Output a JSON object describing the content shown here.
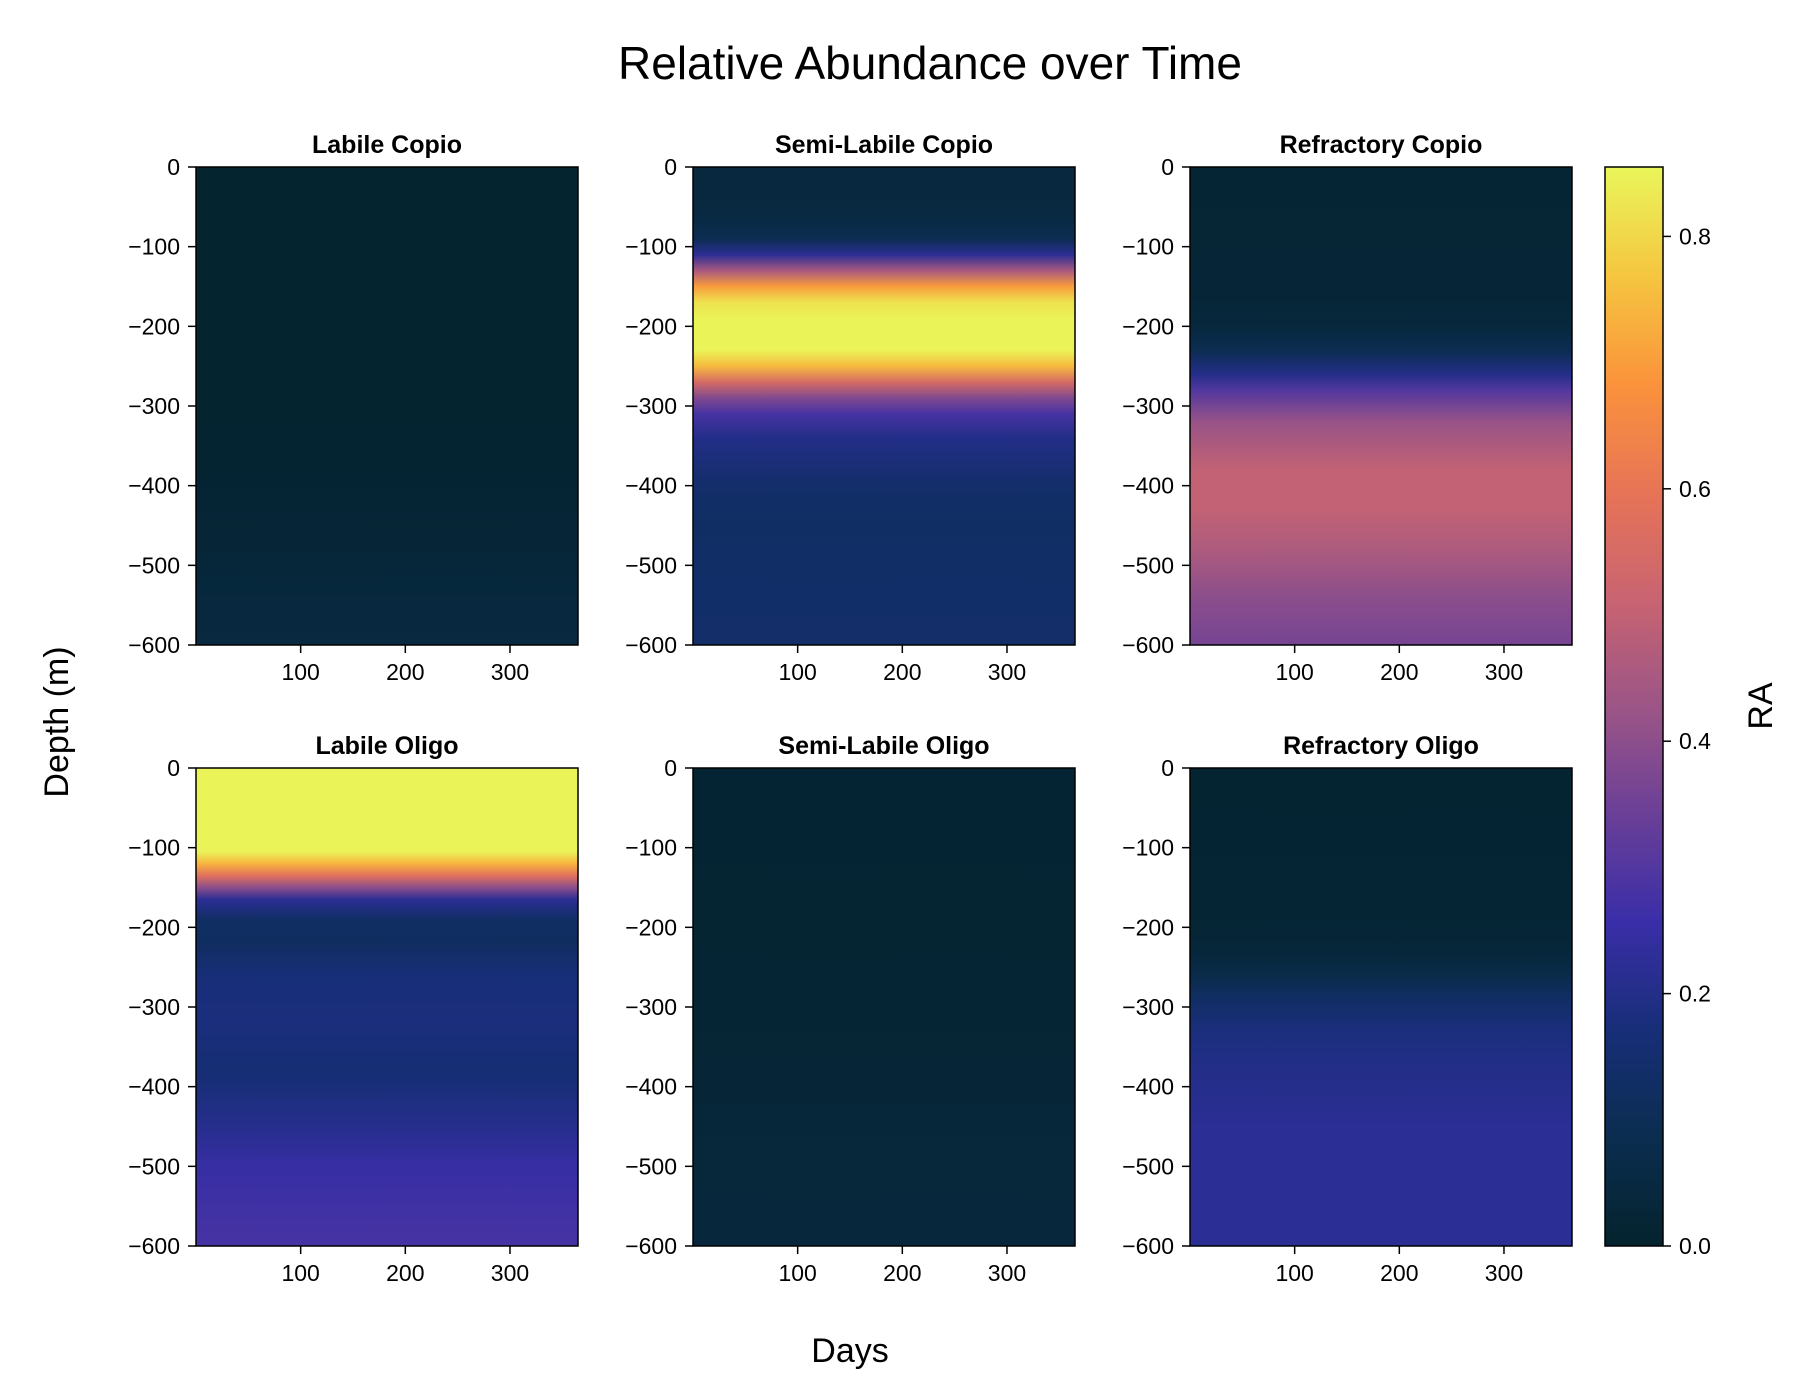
{
  "chart_data": {
    "type": "heatmap",
    "title": "Relative Abundance over Time",
    "xlabel": "Days",
    "ylabel": "Depth (m)",
    "colorbar": {
      "label": "RA",
      "range": [
        0,
        0.855
      ],
      "ticks": [
        0.0,
        0.2,
        0.4,
        0.6,
        0.8
      ],
      "tick_labels": [
        "0.0",
        "0.2",
        "0.4",
        "0.6",
        "0.8"
      ],
      "colormap": "thermal",
      "stops": [
        "#04232e",
        "#0b2d4f",
        "#172e78",
        "#3a2ea8",
        "#6a3f97",
        "#9c5586",
        "#c96471",
        "#e77456",
        "#fa933b",
        "#f5c640",
        "#e9f65a"
      ]
    },
    "xlim": [
      0,
      365
    ],
    "ylim": [
      -600,
      0
    ],
    "xticks": [
      100,
      200,
      300
    ],
    "xtick_labels": [
      "100",
      "200",
      "300"
    ],
    "yticks": [
      0,
      -100,
      -200,
      -300,
      -400,
      -500,
      -600
    ],
    "ytick_labels": [
      "0",
      "−100",
      "−200",
      "−300",
      "−400",
      "−500",
      "−600"
    ],
    "uniform_over_days": true,
    "panels": [
      {
        "title": "Labile Copio",
        "profile": [
          [
            0,
            0.005
          ],
          [
            -100,
            0.005
          ],
          [
            -200,
            0.005
          ],
          [
            -300,
            0.006
          ],
          [
            -400,
            0.012
          ],
          [
            -500,
            0.03
          ],
          [
            -600,
            0.05
          ]
        ]
      },
      {
        "title": "Semi-Labile Copio",
        "profile": [
          [
            0,
            0.04
          ],
          [
            -60,
            0.05
          ],
          [
            -90,
            0.09
          ],
          [
            -110,
            0.22
          ],
          [
            -130,
            0.45
          ],
          [
            -150,
            0.7
          ],
          [
            -170,
            0.82
          ],
          [
            -190,
            0.85
          ],
          [
            -230,
            0.85
          ],
          [
            -250,
            0.75
          ],
          [
            -270,
            0.55
          ],
          [
            -290,
            0.38
          ],
          [
            -310,
            0.28
          ],
          [
            -340,
            0.2
          ],
          [
            -400,
            0.14
          ],
          [
            -450,
            0.13
          ],
          [
            -500,
            0.135
          ],
          [
            -600,
            0.14
          ]
        ]
      },
      {
        "title": "Refractory Copio",
        "profile": [
          [
            0,
            0.015
          ],
          [
            -150,
            0.02
          ],
          [
            -200,
            0.04
          ],
          [
            -230,
            0.09
          ],
          [
            -260,
            0.2
          ],
          [
            -280,
            0.3
          ],
          [
            -320,
            0.42
          ],
          [
            -380,
            0.5
          ],
          [
            -430,
            0.5
          ],
          [
            -480,
            0.46
          ],
          [
            -540,
            0.4
          ],
          [
            -600,
            0.36
          ]
        ]
      },
      {
        "title": "Labile Oligo",
        "profile": [
          [
            0,
            0.85
          ],
          [
            -105,
            0.85
          ],
          [
            -120,
            0.74
          ],
          [
            -135,
            0.58
          ],
          [
            -150,
            0.4
          ],
          [
            -165,
            0.22
          ],
          [
            -190,
            0.13
          ],
          [
            -220,
            0.12
          ],
          [
            -260,
            0.17
          ],
          [
            -320,
            0.18
          ],
          [
            -380,
            0.16
          ],
          [
            -440,
            0.2
          ],
          [
            -500,
            0.25
          ],
          [
            -600,
            0.28
          ]
        ]
      },
      {
        "title": "Semi-Labile Oligo",
        "profile": [
          [
            0,
            0.012
          ],
          [
            -200,
            0.013
          ],
          [
            -300,
            0.016
          ],
          [
            -400,
            0.025
          ],
          [
            -500,
            0.033
          ],
          [
            -600,
            0.036
          ]
        ]
      },
      {
        "title": "Refractory Oligo",
        "profile": [
          [
            0,
            0.01
          ],
          [
            -180,
            0.015
          ],
          [
            -230,
            0.03
          ],
          [
            -260,
            0.07
          ],
          [
            -290,
            0.13
          ],
          [
            -330,
            0.18
          ],
          [
            -380,
            0.2
          ],
          [
            -450,
            0.22
          ],
          [
            -520,
            0.22
          ],
          [
            -600,
            0.22
          ]
        ]
      }
    ]
  }
}
